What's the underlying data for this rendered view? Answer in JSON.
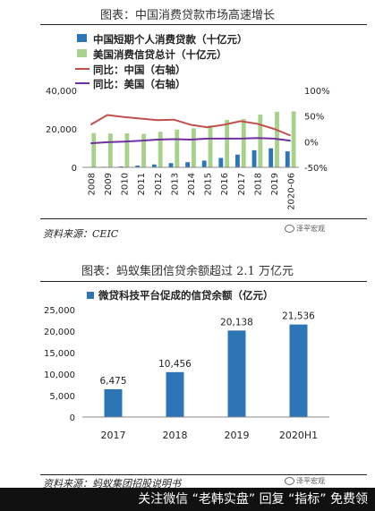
{
  "chart1_caption": "图表：中国消费贷款市场高速增长",
  "chart2_caption": "图表：蚂蚁集团信贷余额超过 2.1 万亿元",
  "source1": "资料来源：CEIC",
  "source2": "资料来源：蚂蚁集团招股说明书",
  "watermark": "泽平宏观",
  "bottom_banner": "关注微信 “老韩实盘” 回复 “指标” 免费领",
  "colors": {
    "blue": "#2e75b6",
    "green": "#a9d18e",
    "red": "#c0504d",
    "purple": "#7030a0"
  },
  "chart_data": [
    {
      "type": "bar",
      "categories": [
        "2008",
        "2009",
        "2010",
        "2011",
        "2012",
        "2013",
        "2014",
        "2015",
        "2016",
        "2017",
        "2018",
        "2019",
        "2020-06"
      ],
      "series": [
        {
          "name": "中国短期个人消费贷款（十亿元）",
          "type": "bar",
          "axis": "left",
          "color": "#2e75b6",
          "values": [
            200,
            300,
            500,
            900,
            1500,
            2200,
            2700,
            3500,
            4900,
            6600,
            8900,
            9900,
            8300
          ]
        },
        {
          "name": "美国消费信贷总计（十亿元）",
          "type": "bar",
          "axis": "left",
          "color": "#a9d18e",
          "values": [
            17800,
            17600,
            17700,
            17400,
            18500,
            19600,
            20300,
            21800,
            24700,
            25100,
            27400,
            28900,
            29100
          ]
        },
        {
          "name": "同比：中国（右轴）",
          "type": "line",
          "axis": "right",
          "color": "#c0504d",
          "values": [
            33,
            52,
            48,
            45,
            42,
            43,
            33,
            28,
            33,
            40,
            35,
            25,
            12
          ]
        },
        {
          "name": "同比：美国（右轴）",
          "type": "line",
          "axis": "right",
          "color": "#7030a0",
          "values": [
            -3,
            -1,
            0,
            2,
            4,
            5,
            4,
            6,
            6,
            6,
            7,
            6,
            2
          ]
        }
      ],
      "yleft": {
        "ylim": [
          0,
          40000
        ],
        "ticks": [
          "0",
          "20,000",
          "40,000"
        ]
      },
      "yright": {
        "ylim": [
          -50,
          100
        ],
        "ticks": [
          "-50%",
          "0%",
          "50%",
          "100%"
        ]
      }
    },
    {
      "type": "bar",
      "categories": [
        "2017",
        "2018",
        "2019",
        "2020H1"
      ],
      "series": [
        {
          "name": "微贷科技平台促成的信贷余额（亿元）",
          "color": "#2e75b6",
          "values": [
            6475,
            10456,
            20138,
            21536
          ],
          "labels": [
            "6,475",
            "10,456",
            "20,138",
            "21,536"
          ]
        }
      ],
      "ylim": [
        0,
        25000
      ],
      "ticks": [
        "0",
        "5,000",
        "10,000",
        "15,000",
        "20,000",
        "25,000"
      ]
    }
  ]
}
